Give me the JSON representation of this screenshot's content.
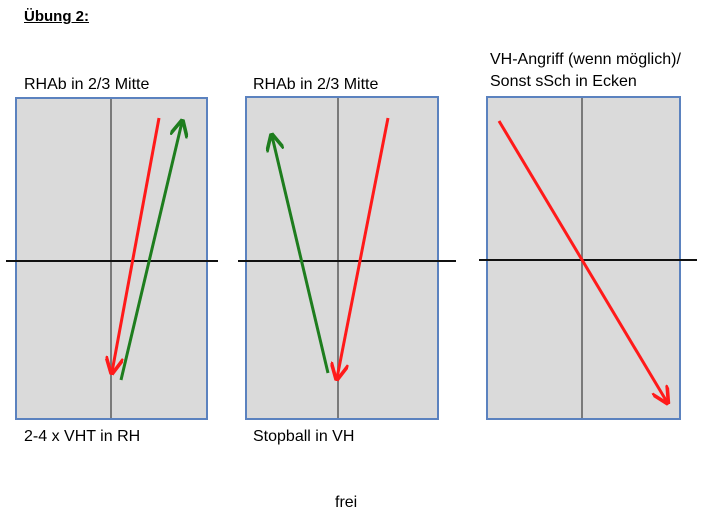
{
  "title": "Übung 2:",
  "panels": [
    {
      "top_label": "RHAb in 2/3 Mitte",
      "bottom_label": "2-4 x VHT in RH",
      "arrows": [
        {
          "color": "#ff1a1a",
          "name": "red"
        },
        {
          "color": "#1e7d1e",
          "name": "green"
        }
      ]
    },
    {
      "top_label": "RHAb in 2/3 Mitte",
      "bottom_label": "Stopball in VH",
      "arrows": [
        {
          "color": "#1e7d1e",
          "name": "green"
        },
        {
          "color": "#ff1a1a",
          "name": "red"
        }
      ]
    },
    {
      "top_label_line1": "VH-Angriff (wenn möglich)/",
      "top_label_line2": "Sonst sSch in Ecken",
      "arrows": [
        {
          "color": "#ff1a1a",
          "name": "red"
        }
      ]
    }
  ],
  "footer": "frei",
  "colors": {
    "table": "#dadada",
    "table_border": "#5b82bf",
    "red": "#ff1a1a",
    "green": "#1e7d1e"
  }
}
